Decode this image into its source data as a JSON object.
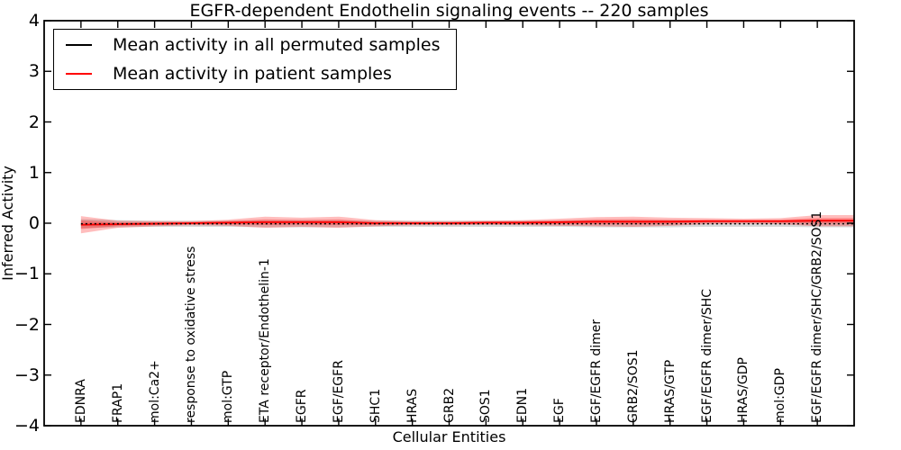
{
  "chart_data": {
    "type": "line",
    "title": "EGFR-dependent Endothelin signaling events -- 220 samples",
    "xlabel": "Cellular Entities",
    "ylabel": "Inferred Activity",
    "ylim": [
      -4,
      4
    ],
    "grid": false,
    "legend_position": "upper left",
    "yticks": [
      {
        "label": "4",
        "value": 4
      },
      {
        "label": "3",
        "value": 3
      },
      {
        "label": "2",
        "value": 2
      },
      {
        "label": "1",
        "value": 1
      },
      {
        "label": "0",
        "value": 0
      },
      {
        "label": "−1",
        "value": -1
      },
      {
        "label": "−2",
        "value": -2
      },
      {
        "label": "−3",
        "value": -3
      },
      {
        "label": "−4",
        "value": -4
      }
    ],
    "categories": [
      "EDNRA",
      "FRAP1",
      "mol:Ca2+",
      "response to oxidative stress",
      "mol:GTP",
      "ETA receptor/Endothelin-1",
      "EGFR",
      "EGF/EGFR",
      "SHC1",
      "HRAS",
      "GRB2",
      "SOS1",
      "EDN1",
      "EGF",
      "EGF/EGFR dimer",
      "GRB2/SOS1",
      "HRAS/GTP",
      "EGF/EGFR dimer/SHC",
      "HRAS/GDP",
      "mol:GDP",
      "EGF/EGFR dimer/SHC/GRB2/SOS1"
    ],
    "series": [
      {
        "name": "Mean activity in all permuted samples",
        "color": "#000000",
        "style": "dotted",
        "band_color": "rgba(110,110,110,0.28)",
        "values": [
          -0.01,
          -0.01,
          -0.01,
          -0.01,
          -0.01,
          -0.01,
          -0.01,
          -0.01,
          -0.01,
          -0.01,
          -0.01,
          -0.01,
          -0.01,
          -0.01,
          -0.01,
          -0.01,
          -0.01,
          -0.01,
          -0.01,
          -0.01,
          -0.01
        ],
        "band": [
          0.09,
          0.07,
          0.06,
          0.06,
          0.06,
          0.07,
          0.07,
          0.07,
          0.06,
          0.06,
          0.06,
          0.06,
          0.06,
          0.06,
          0.07,
          0.07,
          0.07,
          0.06,
          0.06,
          0.06,
          0.07
        ]
      },
      {
        "name": "Mean activity in patient samples",
        "color": "#ff0000",
        "style": "solid",
        "band_color": "rgba(255,0,0,0.26)",
        "values": [
          -0.03,
          -0.02,
          -0.01,
          0.0,
          0.01,
          0.02,
          0.02,
          0.02,
          0.0,
          0.0,
          0.0,
          0.01,
          0.01,
          0.02,
          0.03,
          0.03,
          0.03,
          0.04,
          0.04,
          0.04,
          0.05
        ],
        "band": [
          0.17,
          0.07,
          0.05,
          0.04,
          0.06,
          0.11,
          0.09,
          0.11,
          0.06,
          0.04,
          0.04,
          0.04,
          0.05,
          0.07,
          0.09,
          0.1,
          0.08,
          0.06,
          0.05,
          0.06,
          0.11
        ]
      }
    ]
  }
}
